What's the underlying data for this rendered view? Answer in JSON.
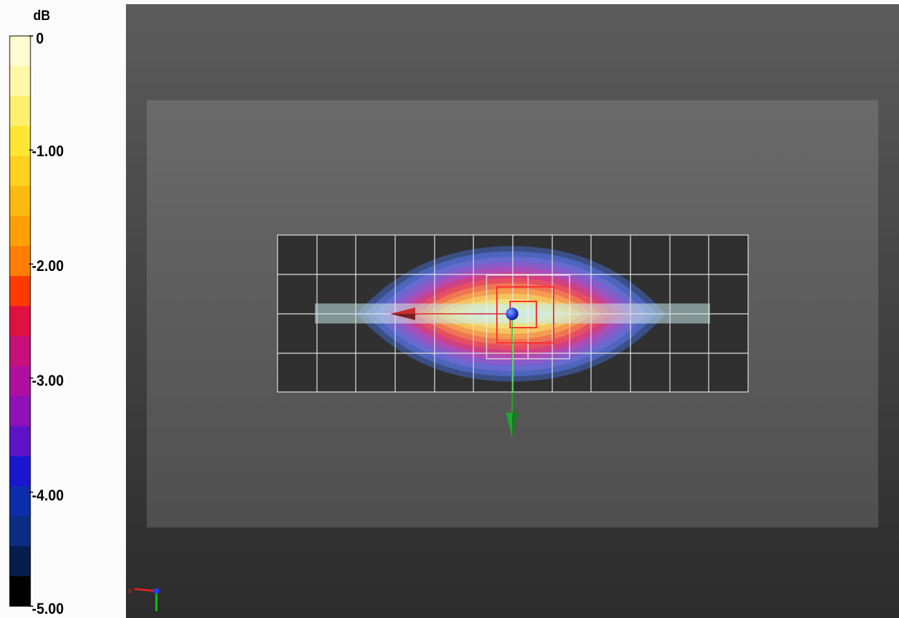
{
  "colorbar": {
    "unit": "dB",
    "tick_labels": [
      "0",
      "-1.00",
      "-2.00",
      "-3.00",
      "-4.00",
      "-5.00"
    ],
    "bands": [
      "#fffdd0",
      "#fff7a8",
      "#ffef70",
      "#ffe633",
      "#ffd21f",
      "#ffba10",
      "#ffa000",
      "#ff7e00",
      "#ff3a00",
      "#e01040",
      "#c8107c",
      "#b00ea0",
      "#8e12b8",
      "#5e14c6",
      "#1a16d0",
      "#0c2eaa",
      "#0a2d82",
      "#061c4c",
      "#000000"
    ]
  },
  "viewport": {
    "heatmap_colors": [
      "#3e5aa0",
      "#4f67c2",
      "#6a6ad0",
      "#8a5ac8",
      "#b04cb4",
      "#d04080",
      "#e85060",
      "#f07a50",
      "#f4a050",
      "#f4c860",
      "#f0e080",
      "#e8eea8",
      "#dcf0d8"
    ],
    "axis_colors": {
      "x": "#e02020",
      "y": "#18c018"
    },
    "origin_marker_color": "#2040ff"
  }
}
